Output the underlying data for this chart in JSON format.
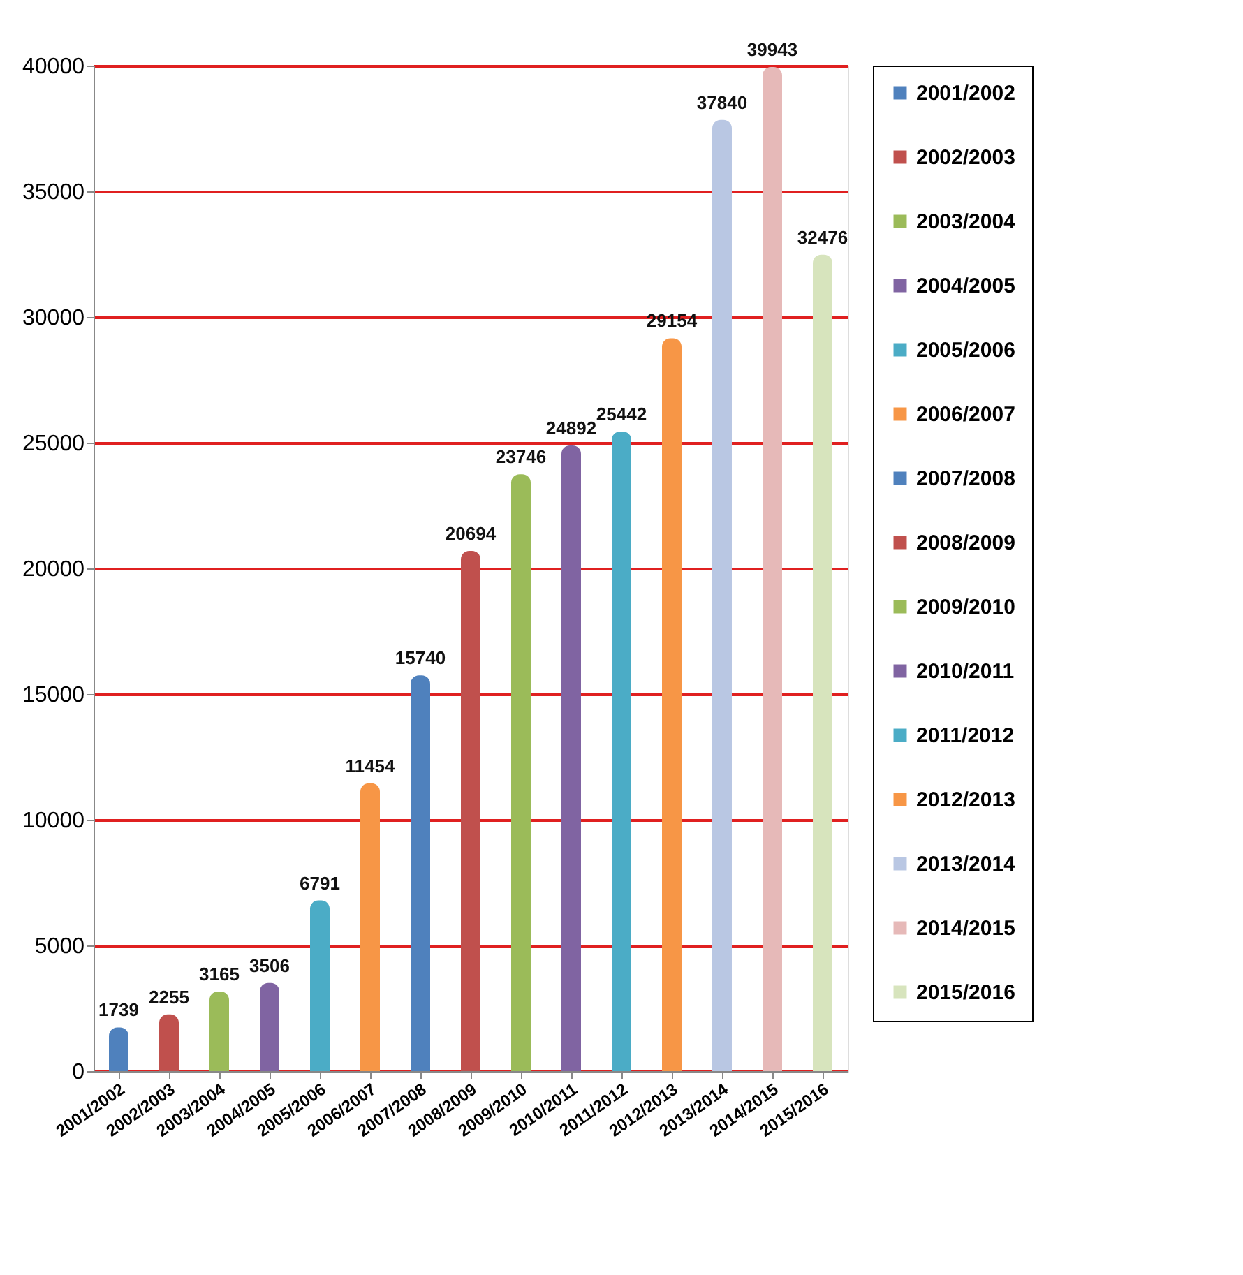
{
  "chart_data": {
    "type": "bar",
    "stacked": true,
    "categories": [
      "2001/2002",
      "2002/2003",
      "2003/2004",
      "2004/2005",
      "2005/2006",
      "2006/2007",
      "2007/2008",
      "2008/2009",
      "2009/2010",
      "2010/2011",
      "2011/2012",
      "2012/2013",
      "2013/2014",
      "2014/2015",
      "2015/2016"
    ],
    "series": [
      {
        "name": "2001/2002",
        "color": "#4f81bd",
        "values": [
          1739,
          null,
          null,
          null,
          null,
          null,
          null,
          null,
          null,
          null,
          null,
          null,
          null,
          null,
          null
        ]
      },
      {
        "name": "2002/2003",
        "color": "#c0504d",
        "values": [
          null,
          2255,
          null,
          null,
          null,
          null,
          null,
          null,
          null,
          null,
          null,
          null,
          null,
          null,
          null
        ]
      },
      {
        "name": "2003/2004",
        "color": "#9bbb59",
        "values": [
          null,
          null,
          3165,
          null,
          null,
          null,
          null,
          null,
          null,
          null,
          null,
          null,
          null,
          null,
          null
        ]
      },
      {
        "name": "2004/2005",
        "color": "#8064a2",
        "values": [
          null,
          null,
          null,
          3506,
          null,
          null,
          null,
          null,
          null,
          null,
          null,
          null,
          null,
          null,
          null
        ]
      },
      {
        "name": "2005/2006",
        "color": "#4bacc6",
        "values": [
          null,
          null,
          null,
          null,
          6791,
          null,
          null,
          null,
          null,
          null,
          null,
          null,
          null,
          null,
          null
        ]
      },
      {
        "name": "2006/2007",
        "color": "#f79646",
        "values": [
          null,
          null,
          null,
          null,
          null,
          11454,
          null,
          null,
          null,
          null,
          null,
          null,
          null,
          null,
          null
        ]
      },
      {
        "name": "2007/2008",
        "color": "#4f81bd",
        "values": [
          null,
          null,
          null,
          null,
          null,
          null,
          15740,
          null,
          null,
          null,
          null,
          null,
          null,
          null,
          null
        ]
      },
      {
        "name": "2008/2009",
        "color": "#c0504d",
        "values": [
          null,
          null,
          null,
          null,
          null,
          null,
          null,
          20694,
          null,
          null,
          null,
          null,
          null,
          null,
          null
        ]
      },
      {
        "name": "2009/2010",
        "color": "#9bbb59",
        "values": [
          null,
          null,
          null,
          null,
          null,
          null,
          null,
          null,
          23746,
          null,
          null,
          null,
          null,
          null,
          null
        ]
      },
      {
        "name": "2010/2011",
        "color": "#8064a2",
        "values": [
          null,
          null,
          null,
          null,
          null,
          null,
          null,
          null,
          null,
          24892,
          null,
          null,
          null,
          null,
          null
        ]
      },
      {
        "name": "2011/2012",
        "color": "#4bacc6",
        "values": [
          null,
          null,
          null,
          null,
          null,
          null,
          null,
          null,
          null,
          null,
          25442,
          null,
          null,
          null,
          null
        ]
      },
      {
        "name": "2012/2013",
        "color": "#f79646",
        "values": [
          null,
          null,
          null,
          null,
          null,
          null,
          null,
          null,
          null,
          null,
          null,
          29154,
          null,
          null,
          null
        ]
      },
      {
        "name": "2013/2014",
        "color": "#b9c7e3",
        "values": [
          null,
          null,
          null,
          null,
          null,
          null,
          null,
          null,
          null,
          null,
          null,
          null,
          37840,
          null,
          null
        ]
      },
      {
        "name": "2014/2015",
        "color": "#e6b9b8",
        "values": [
          null,
          null,
          null,
          null,
          null,
          null,
          null,
          null,
          null,
          null,
          null,
          null,
          null,
          39943,
          null
        ]
      },
      {
        "name": "2015/2016",
        "color": "#d7e4bd",
        "values": [
          null,
          null,
          null,
          null,
          null,
          null,
          null,
          null,
          null,
          null,
          null,
          null,
          null,
          null,
          32476
        ]
      }
    ],
    "ylim": [
      0,
      40000
    ],
    "yticks": [
      0,
      5000,
      10000,
      15000,
      20000,
      25000,
      30000,
      35000,
      40000
    ],
    "grid": "y",
    "legend": "right",
    "data_labels": true
  }
}
